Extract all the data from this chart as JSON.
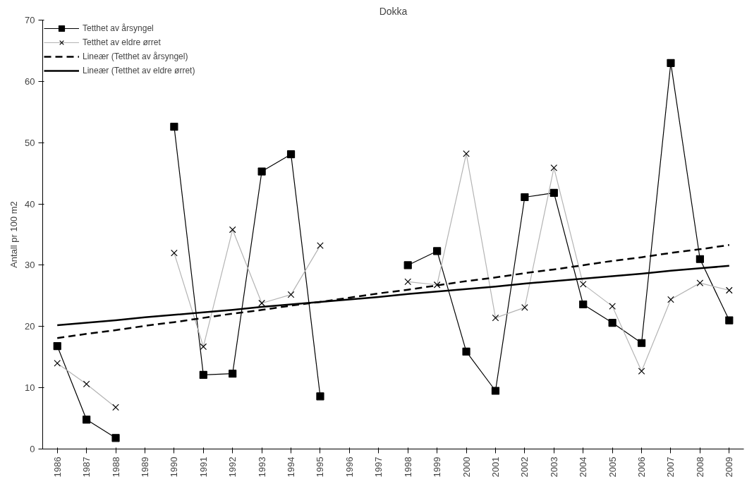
{
  "chart_data": {
    "type": "line",
    "title": "Dokka",
    "ylabel": "Antall pr 100 m2",
    "categories": [
      "1986",
      "1987",
      "1988",
      "1989",
      "1990",
      "1991",
      "1992",
      "1993",
      "1994",
      "1995",
      "1996",
      "1997",
      "1998",
      "1999",
      "2000",
      "2001",
      "2002",
      "2003",
      "2004",
      "2005",
      "2006",
      "2007",
      "2008",
      "2009"
    ],
    "ylim": [
      0,
      70
    ],
    "yticks": [
      0,
      10,
      20,
      30,
      40,
      50,
      60,
      70
    ],
    "grid": false,
    "legend": "top left",
    "series": [
      {
        "name": "Tetthet av årsyngel",
        "color": "#000000",
        "marker": "square",
        "line_style": "solid",
        "values": [
          16.8,
          4.8,
          1.8,
          null,
          52.6,
          12.1,
          12.3,
          45.3,
          48.1,
          8.6,
          null,
          null,
          30.0,
          32.3,
          15.9,
          9.5,
          41.1,
          41.8,
          23.6,
          20.6,
          17.3,
          63.0,
          31.0,
          21.0
        ]
      },
      {
        "name": "Tetthet av eldre ørret",
        "color": "#b4b4b4",
        "marker": "cross",
        "line_style": "solid",
        "values": [
          14.0,
          10.6,
          6.8,
          null,
          32.0,
          16.7,
          35.8,
          23.8,
          25.2,
          33.2,
          null,
          null,
          27.3,
          26.8,
          48.2,
          21.4,
          23.1,
          45.9,
          26.9,
          23.3,
          12.7,
          24.4,
          27.1,
          25.9
        ]
      },
      {
        "name": "Lineær (Tetthet av årsyngel)",
        "color": "#000000",
        "marker": "none",
        "line_style": "dashed",
        "values": [
          18.1,
          18.8,
          19.4,
          20.1,
          20.7,
          21.4,
          22.1,
          22.7,
          23.4,
          24.0,
          24.7,
          25.4,
          26.0,
          26.7,
          27.4,
          28.0,
          28.7,
          29.3,
          30.0,
          30.7,
          31.3,
          32.0,
          32.6,
          33.3
        ]
      },
      {
        "name": "Lineær (Tetthet av eldre ørret)",
        "color": "#000000",
        "marker": "none",
        "line_style": "solid",
        "values": [
          20.2,
          20.6,
          21.0,
          21.5,
          21.9,
          22.3,
          22.7,
          23.2,
          23.6,
          24.0,
          24.4,
          24.8,
          25.3,
          25.7,
          26.1,
          26.5,
          27.0,
          27.4,
          27.8,
          28.2,
          28.6,
          29.1,
          29.5,
          29.9
        ]
      }
    ]
  }
}
